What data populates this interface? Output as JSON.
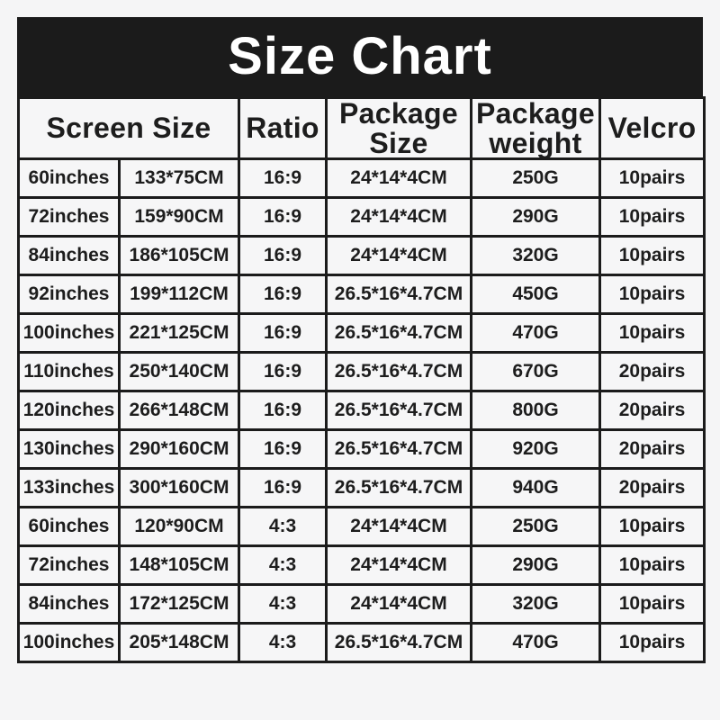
{
  "title": "Size Chart",
  "colors": {
    "title_bar_bg": "#1b1b1b",
    "title_text": "#ffffff",
    "border": "#1b1b1b",
    "page_bg": "#f5f5f6",
    "cell_bg": "#f6f6f7",
    "cell_text": "#1d1d1d"
  },
  "chart_data": {
    "type": "table",
    "title": "Size Chart",
    "header": {
      "screen_size": "Screen Size",
      "ratio": "Ratio",
      "package_size": "Package Size",
      "package_weight": "Package weight",
      "velcro": "Velcro"
    },
    "column_keys": [
      "screen-size-inches",
      "screen-size-cm",
      "ratio",
      "package-size",
      "package-weight",
      "velcro"
    ],
    "rows": [
      [
        "60inches",
        "133*75CM",
        "16:9",
        "24*14*4CM",
        "250G",
        "10pairs"
      ],
      [
        "72inches",
        "159*90CM",
        "16:9",
        "24*14*4CM",
        "290G",
        "10pairs"
      ],
      [
        "84inches",
        "186*105CM",
        "16:9",
        "24*14*4CM",
        "320G",
        "10pairs"
      ],
      [
        "92inches",
        "199*112CM",
        "16:9",
        "26.5*16*4.7CM",
        "450G",
        "10pairs"
      ],
      [
        "100inches",
        "221*125CM",
        "16:9",
        "26.5*16*4.7CM",
        "470G",
        "10pairs"
      ],
      [
        "110inches",
        "250*140CM",
        "16:9",
        "26.5*16*4.7CM",
        "670G",
        "20pairs"
      ],
      [
        "120inches",
        "266*148CM",
        "16:9",
        "26.5*16*4.7CM",
        "800G",
        "20pairs"
      ],
      [
        "130inches",
        "290*160CM",
        "16:9",
        "26.5*16*4.7CM",
        "920G",
        "20pairs"
      ],
      [
        "133inches",
        "300*160CM",
        "16:9",
        "26.5*16*4.7CM",
        "940G",
        "20pairs"
      ],
      [
        "60inches",
        "120*90CM",
        "4:3",
        "24*14*4CM",
        "250G",
        "10pairs"
      ],
      [
        "72inches",
        "148*105CM",
        "4:3",
        "24*14*4CM",
        "290G",
        "10pairs"
      ],
      [
        "84inches",
        "172*125CM",
        "4:3",
        "24*14*4CM",
        "320G",
        "10pairs"
      ],
      [
        "100inches",
        "205*148CM",
        "4:3",
        "26.5*16*4.7CM",
        "470G",
        "10pairs"
      ]
    ]
  }
}
